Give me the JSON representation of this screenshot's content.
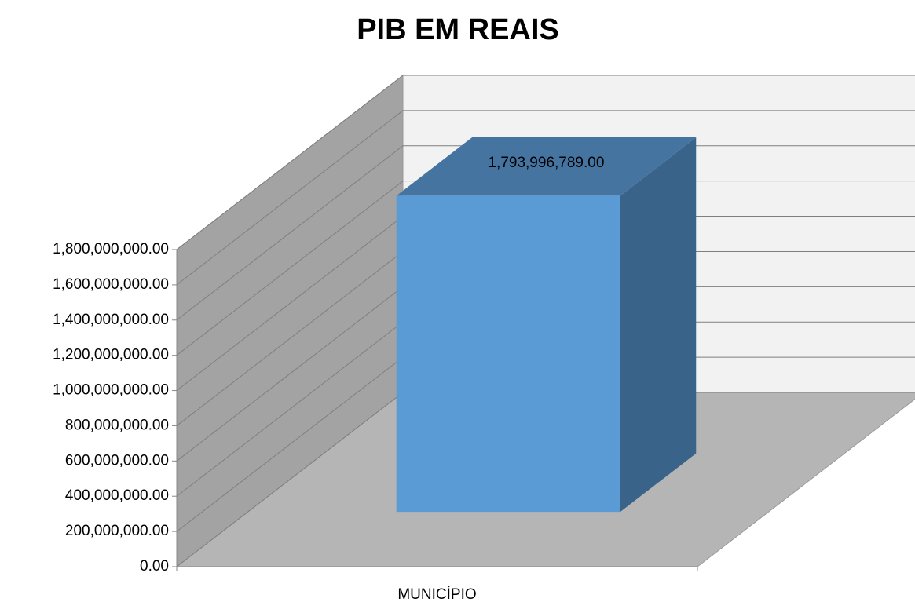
{
  "chart_data": {
    "type": "bar3d",
    "title": "PIB EM REAIS",
    "categories": [
      "MUNICÍPIO"
    ],
    "values": [
      1793996789
    ],
    "value_labels": [
      "1,793,996,789.00"
    ],
    "color": "#5b9bd5",
    "ylim": [
      0,
      1800000000
    ],
    "yticks": [
      {
        "value": 0,
        "label": "0.00"
      },
      {
        "value": 200000000,
        "label": "200,000,000.00"
      },
      {
        "value": 400000000,
        "label": "400,000,000.00"
      },
      {
        "value": 600000000,
        "label": "600,000,000.00"
      },
      {
        "value": 800000000,
        "label": "800,000,000.00"
      },
      {
        "value": 1000000000,
        "label": "1,000,000,000.00"
      },
      {
        "value": 1200000000,
        "label": "1,200,000,000.00"
      },
      {
        "value": 1400000000,
        "label": "1,400,000,000.00"
      },
      {
        "value": 1600000000,
        "label": "1,600,000,000.00"
      },
      {
        "value": 1800000000,
        "label": "1,800,000,000.00"
      }
    ],
    "grid": true
  }
}
